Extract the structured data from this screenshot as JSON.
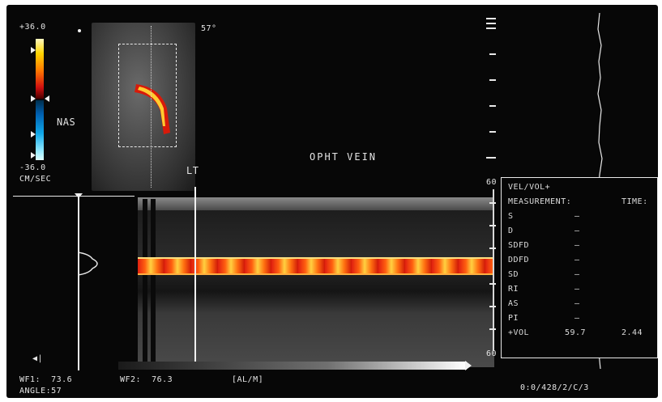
{
  "scale": {
    "top_value": "+36.0",
    "bottom_value": "-36.0",
    "unit": "CM/SEC",
    "direction_label": "NAS"
  },
  "image": {
    "angle_top": "57°",
    "vessel_label": "OPHT VEIN",
    "side_label": "LT"
  },
  "ruler": {
    "top_label": "60",
    "bottom_label": "60"
  },
  "measurements": {
    "header": "VEL/VOL+",
    "col_measurement": "MEASUREMENT:",
    "col_time": "TIME:",
    "rows": [
      {
        "label": "S",
        "value": "–",
        "time": ""
      },
      {
        "label": "D",
        "value": "–",
        "time": ""
      },
      {
        "label": "SDFD",
        "value": "–",
        "time": ""
      },
      {
        "label": "DDFD",
        "value": "–",
        "time": ""
      },
      {
        "label": "SD",
        "value": "–",
        "time": ""
      },
      {
        "label": "RI",
        "value": "–",
        "time": ""
      },
      {
        "label": "AS",
        "value": "–",
        "time": ""
      },
      {
        "label": "PI",
        "value": "–",
        "time": ""
      },
      {
        "label": "+VOL",
        "value": "59.7",
        "time": "2.44"
      }
    ]
  },
  "footer": {
    "speaker_icon": "speaker-icon",
    "wf1": "WF1:  73.6",
    "wf2": "WF2:  76.3",
    "mode": "[AL/M]",
    "angle": "ANGLE:57",
    "settings": "0:0/428/2/C/3"
  },
  "colors": {
    "flow_red": "#e02010",
    "flow_yellow": "#ffd040",
    "background": "#070707"
  }
}
